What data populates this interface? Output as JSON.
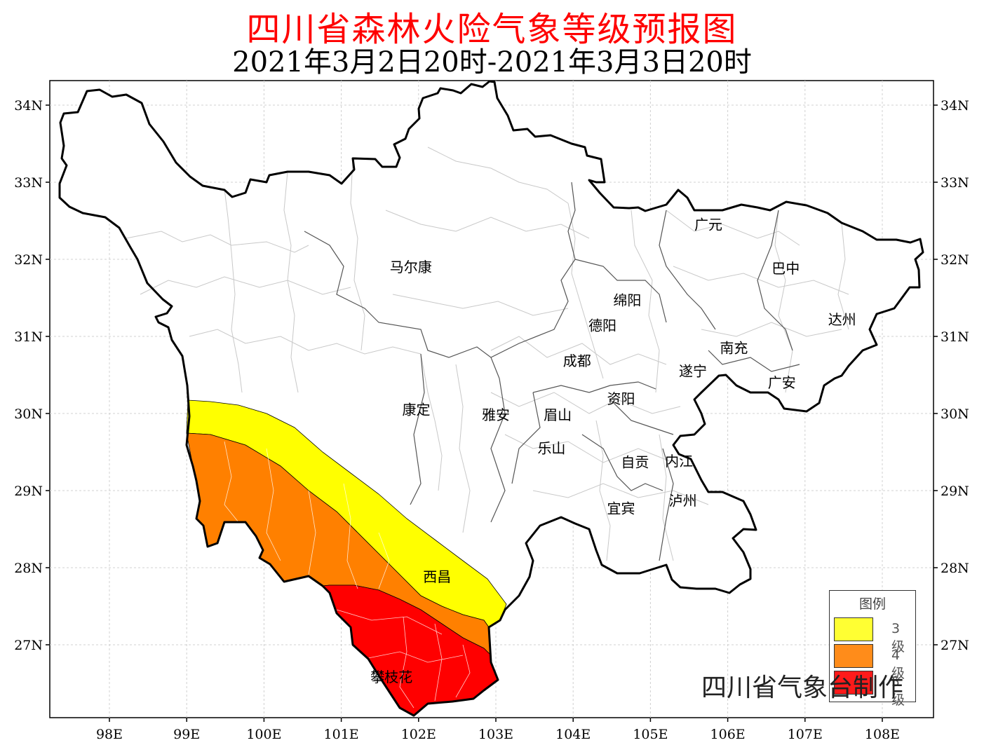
{
  "title": "四川省森林火险气象等级预报图",
  "subtitle": "2021年3月2日20时-2021年3月3日20时",
  "credit": "四川省气象台制作",
  "lon_ticks": [
    "98E",
    "99E",
    "100E",
    "101E",
    "102E",
    "103E",
    "104E",
    "105E",
    "106E",
    "107E",
    "108E"
  ],
  "lat_ticks": [
    "34N",
    "33N",
    "32N",
    "31N",
    "30N",
    "29N",
    "28N",
    "27N"
  ],
  "cities": [
    {
      "name": "广元",
      "lon": 105.75,
      "lat": 32.45
    },
    {
      "name": "马尔康",
      "lon": 101.9,
      "lat": 31.9
    },
    {
      "name": "巴中",
      "lon": 106.75,
      "lat": 31.88
    },
    {
      "name": "绵阳",
      "lon": 104.7,
      "lat": 31.47
    },
    {
      "name": "达州",
      "lon": 107.48,
      "lat": 31.22
    },
    {
      "name": "德阳",
      "lon": 104.38,
      "lat": 31.14
    },
    {
      "name": "南充",
      "lon": 106.08,
      "lat": 30.85
    },
    {
      "name": "成都",
      "lon": 104.05,
      "lat": 30.68
    },
    {
      "name": "遂宁",
      "lon": 105.55,
      "lat": 30.55
    },
    {
      "name": "广安",
      "lon": 106.7,
      "lat": 30.4
    },
    {
      "name": "康定",
      "lon": 101.97,
      "lat": 30.05
    },
    {
      "name": "资阳",
      "lon": 104.62,
      "lat": 30.19
    },
    {
      "name": "雅安",
      "lon": 103.0,
      "lat": 29.98
    },
    {
      "name": "眉山",
      "lon": 103.8,
      "lat": 29.98
    },
    {
      "name": "乐山",
      "lon": 103.72,
      "lat": 29.55
    },
    {
      "name": "自贡",
      "lon": 104.8,
      "lat": 29.37
    },
    {
      "name": "内江",
      "lon": 105.37,
      "lat": 29.38
    },
    {
      "name": "泸州",
      "lon": 105.42,
      "lat": 28.87
    },
    {
      "name": "宜宾",
      "lon": 104.62,
      "lat": 28.77
    },
    {
      "name": "西昌",
      "lon": 102.24,
      "lat": 27.88
    },
    {
      "name": "攀枝花",
      "lon": 101.65,
      "lat": 26.58
    }
  ],
  "legend": {
    "title": "图例",
    "items": [
      {
        "label": "3级",
        "color": "#ffff33"
      },
      {
        "label": "4级",
        "color": "#ff8c1a"
      },
      {
        "label": "5级",
        "color": "#ff1a1a"
      }
    ]
  },
  "colors": {
    "level3": "#ffff00",
    "level4": "#ff8000",
    "level5": "#ff0000",
    "boundary": "#000000",
    "county_line": "#c8c8c8",
    "grid": "#d0d0d0"
  }
}
